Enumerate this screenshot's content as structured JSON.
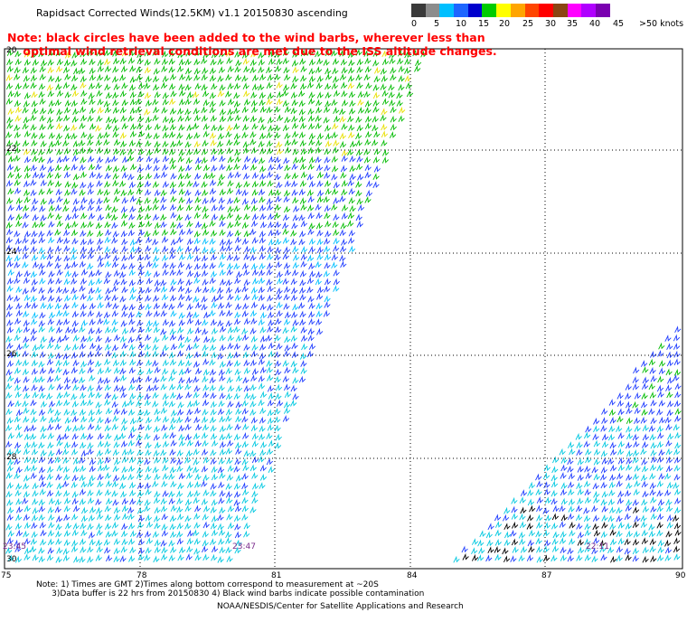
{
  "header": {
    "title": "Rapidsact Corrected Winds(12.5KM) v1.1 20150830 ascending",
    "note_line1": "Note: black circles have been added to the wind barbs, wherever less than",
    "note_line2": "    optimal wind retrieval conditions are met due to the ISS altitude changes."
  },
  "color_scale": {
    "colors": [
      "#3a3a3a",
      "#8c8c8c",
      "#00bfff",
      "#1e66ff",
      "#0000cd",
      "#00cc00",
      "#ffff00",
      "#ffa500",
      "#ff4500",
      "#ff0000",
      "#8b4513",
      "#ff00ff",
      "#b000ff",
      "#7a00b0"
    ],
    "labels": [
      "0",
      "5",
      "10",
      "15",
      "20",
      "25",
      "30",
      "35",
      "40",
      "45",
      ">50 knots"
    ]
  },
  "axes": {
    "lon_labels": [
      "75",
      "78",
      "81",
      "84",
      "87",
      "90"
    ],
    "lat_labels": [
      "20",
      "22",
      "24",
      "26",
      "28",
      "30"
    ]
  },
  "time_labels": [
    "23:45",
    "23:47",
    "22:11"
  ],
  "footer": {
    "line1": "Note: 1) Times are GMT 2)Times along bottom correspond to measurement at ~20S",
    "line2": "      3)Data buffer is 22 hrs from 20150830 4) Black wind barbs indicate possible contamination",
    "line3": "NOAA/NESDIS/Center for Satellite Applications and Research"
  }
}
